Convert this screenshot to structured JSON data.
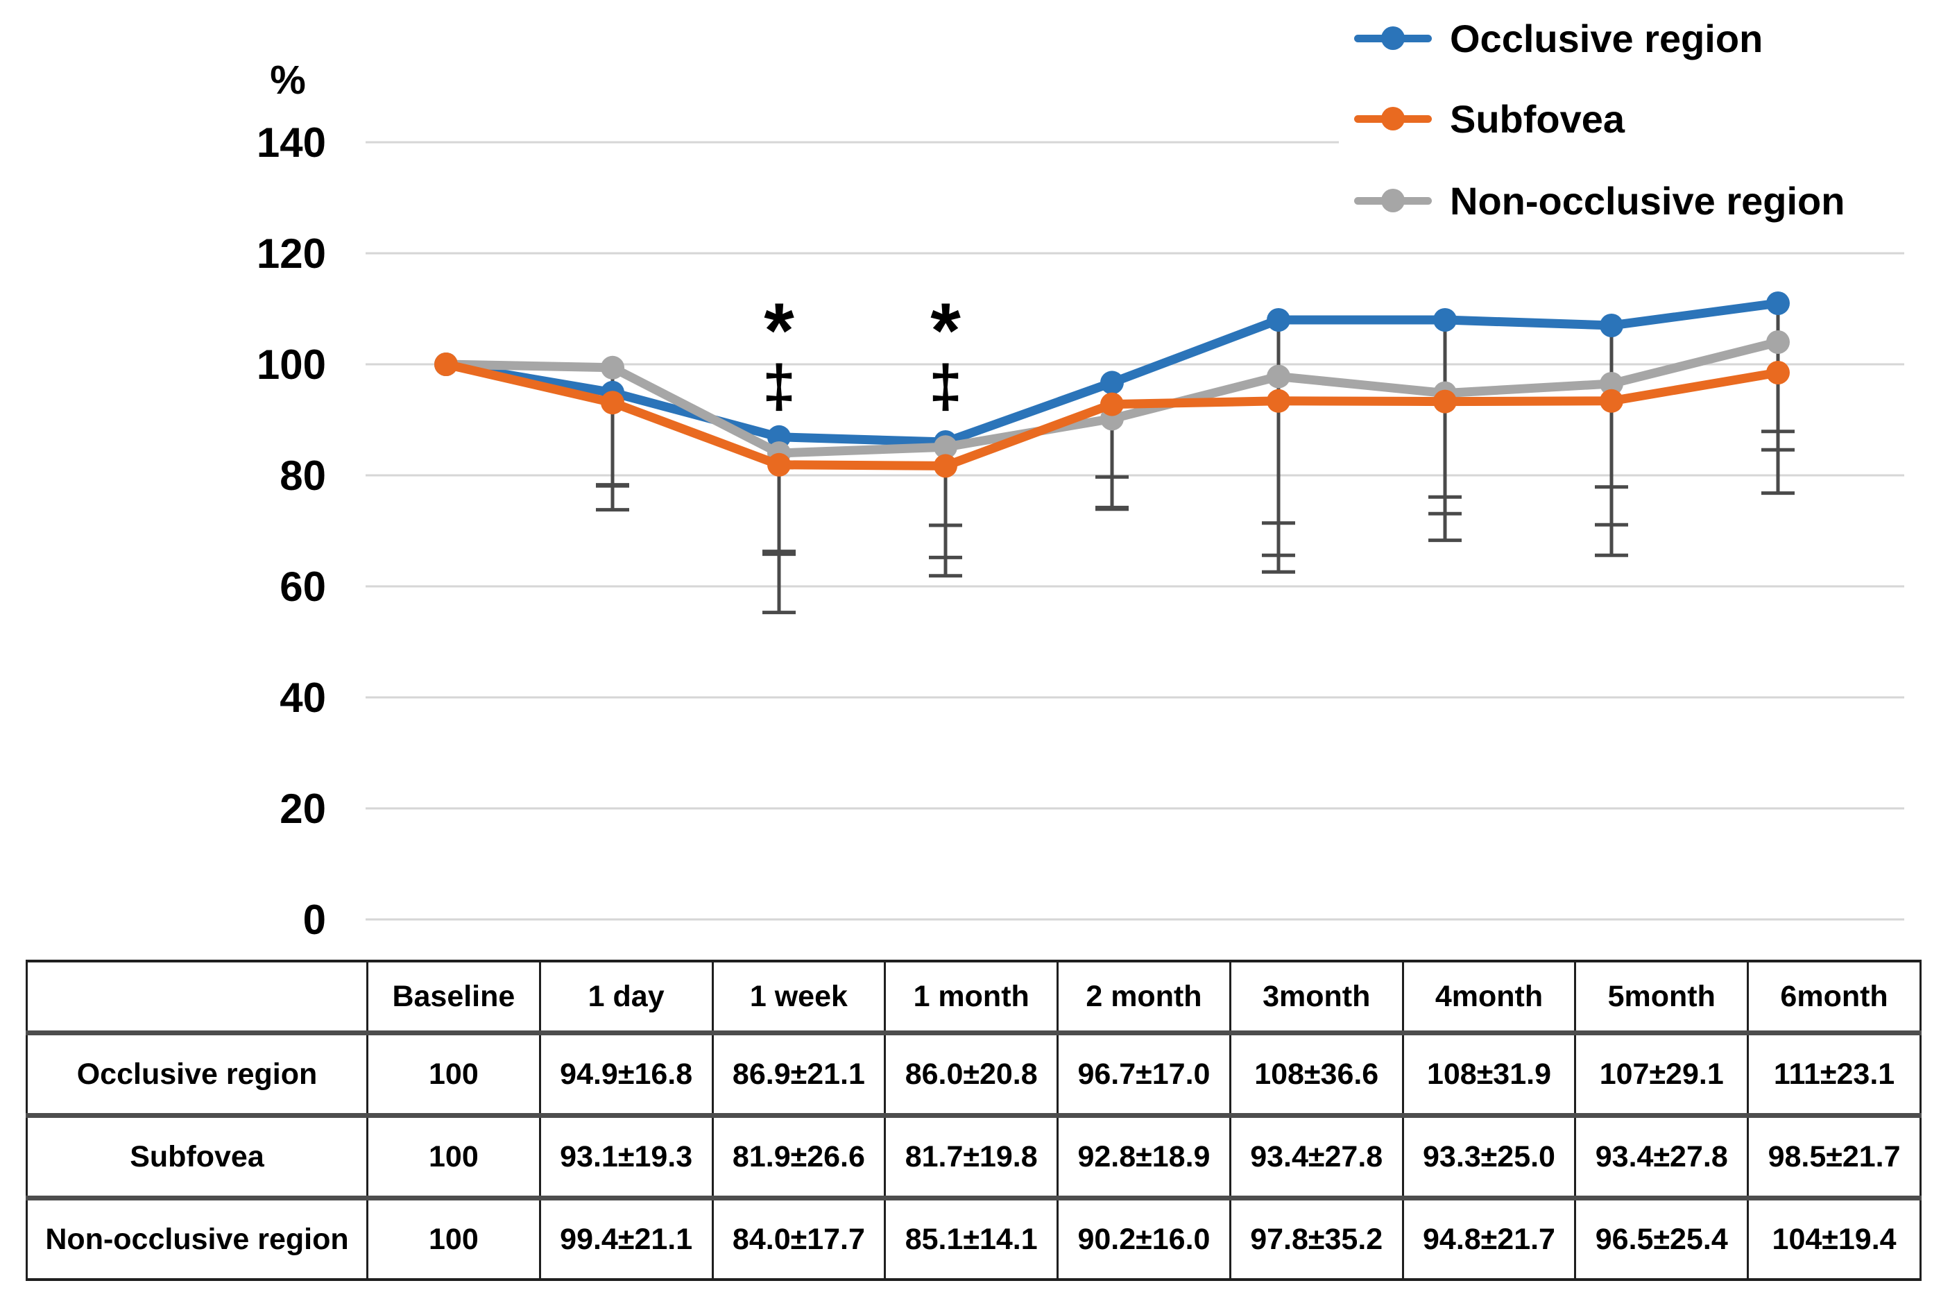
{
  "chart_data": {
    "type": "line",
    "title": "",
    "unit_label": "%",
    "xlabel": "",
    "ylabel": "%",
    "categories": [
      "Baseline",
      "1 day",
      "1 week",
      "1 month",
      "2 month",
      "3month",
      "4month",
      "5month",
      "6month"
    ],
    "y_ticks": [
      140,
      120,
      100,
      80,
      60,
      40,
      20,
      0
    ],
    "ylim": [
      0,
      140
    ],
    "grid": true,
    "legend_position": "top-right",
    "gridline_color": "#D6D6D6",
    "error_bar_color": "#4A4A4A",
    "error_bar_direction": "minus",
    "series": [
      {
        "name": "Occlusive region",
        "color": "#2B74B9",
        "values": [
          100,
          94.9,
          86.9,
          86.0,
          96.7,
          108,
          108,
          107,
          111
        ],
        "sd": [
          null,
          16.8,
          21.1,
          20.8,
          17.0,
          36.6,
          31.9,
          29.1,
          23.1
        ]
      },
      {
        "name": "Subfovea",
        "color": "#E96A20",
        "values": [
          100,
          93.1,
          81.9,
          81.7,
          92.8,
          93.4,
          93.3,
          93.4,
          98.5
        ],
        "sd": [
          null,
          19.3,
          26.6,
          19.8,
          18.9,
          27.8,
          25.0,
          27.8,
          21.7
        ]
      },
      {
        "name": "Non-occlusive region",
        "color": "#A6A6A6",
        "values": [
          100,
          99.4,
          84.0,
          85.1,
          90.2,
          97.8,
          94.8,
          96.5,
          104
        ],
        "sd": [
          null,
          21.1,
          17.7,
          14.1,
          16.0,
          35.2,
          21.7,
          25.4,
          19.4
        ]
      }
    ],
    "annotations": [
      {
        "category_index": 2,
        "symbols": [
          "*",
          "‡"
        ]
      },
      {
        "category_index": 3,
        "symbols": [
          "*",
          "‡"
        ]
      }
    ]
  },
  "table": {
    "col_headers": [
      "",
      "Baseline",
      "1 day",
      "1 week",
      "1 month",
      "2 month",
      "3month",
      "4month",
      "5month",
      "6month"
    ],
    "rows": [
      {
        "label": "Occlusive region",
        "cells": [
          "100",
          "94.9±16.8",
          "86.9±21.1",
          "86.0±20.8",
          "96.7±17.0",
          "108±36.6",
          "108±31.9",
          "107±29.1",
          "111±23.1"
        ]
      },
      {
        "label": "Subfovea",
        "cells": [
          "100",
          "93.1±19.3",
          "81.9±26.6",
          "81.7±19.8",
          "92.8±18.9",
          "93.4±27.8",
          "93.3±25.0",
          "93.4±27.8",
          "98.5±21.7"
        ]
      },
      {
        "label": "Non-occlusive region",
        "cells": [
          "100",
          "99.4±21.1",
          "84.0±17.7",
          "85.1±14.1",
          "90.2±16.0",
          "97.8±35.2",
          "94.8±21.7",
          "96.5±25.4",
          "104±19.4"
        ]
      }
    ]
  }
}
